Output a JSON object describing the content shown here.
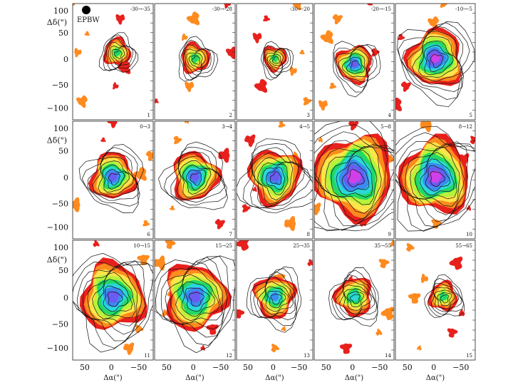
{
  "figure": {
    "beam_label": "EPBW",
    "y_axis_label": "Δδ(\")",
    "x_axis_label": "Δα(\")",
    "y_ticks": [
      "100",
      "50",
      "0",
      "−50",
      "−100"
    ],
    "x_ticks": [
      "50",
      "0",
      "−50"
    ],
    "colorscale": [
      "#e8201c",
      "#ff8a1e",
      "#ffe44a",
      "#b8f23a",
      "#22d866",
      "#2ad8d8",
      "#3a8cf0",
      "#6a5cf0",
      "#d040e8"
    ]
  },
  "panels": [
    {
      "num": "1",
      "range": "-30→-35",
      "size": 0.3,
      "peak": 4,
      "ox": 0.05,
      "oy": -0.05
    },
    {
      "num": "2",
      "range": "-30→-28",
      "size": 0.32,
      "peak": 4,
      "ox": 0.0,
      "oy": 0.0
    },
    {
      "num": "3",
      "range": "-30→-20",
      "size": 0.28,
      "peak": 4,
      "ox": 0.0,
      "oy": 0.0
    },
    {
      "num": "4",
      "range": "-20→-15",
      "size": 0.4,
      "peak": 7,
      "ox": 0.0,
      "oy": 0.05
    },
    {
      "num": "5",
      "range": "-10→-5",
      "size": 0.62,
      "peak": 8,
      "ox": 0.0,
      "oy": 0.0
    },
    {
      "num": "6",
      "range": "0→3",
      "size": 0.5,
      "peak": 7,
      "ox": 0.0,
      "oy": 0.0
    },
    {
      "num": "7",
      "range": "3→4",
      "size": 0.52,
      "peak": 7,
      "ox": 0.0,
      "oy": 0.0
    },
    {
      "num": "8",
      "range": "4→5",
      "size": 0.62,
      "peak": 7,
      "ox": 0.0,
      "oy": 0.0
    },
    {
      "num": "9",
      "range": "5→8",
      "size": 0.9,
      "peak": 8,
      "ox": 0.0,
      "oy": 0.0
    },
    {
      "num": "10",
      "range": "8→12",
      "size": 0.8,
      "peak": 8,
      "ox": 0.0,
      "oy": 0.0
    },
    {
      "num": "11",
      "range": "10→15",
      "size": 0.72,
      "peak": 7,
      "ox": 0.0,
      "oy": 0.0
    },
    {
      "num": "12",
      "range": "15→25",
      "size": 0.7,
      "peak": 7,
      "ox": 0.0,
      "oy": 0.0
    },
    {
      "num": "13",
      "range": "25→35",
      "size": 0.48,
      "peak": 6,
      "ox": 0.0,
      "oy": 0.0
    },
    {
      "num": "14",
      "range": "35→55",
      "size": 0.42,
      "peak": 5,
      "ox": 0.0,
      "oy": 0.0
    },
    {
      "num": "15",
      "range": "55→65",
      "size": 0.32,
      "peak": 4,
      "ox": 0.1,
      "oy": 0.0
    }
  ]
}
